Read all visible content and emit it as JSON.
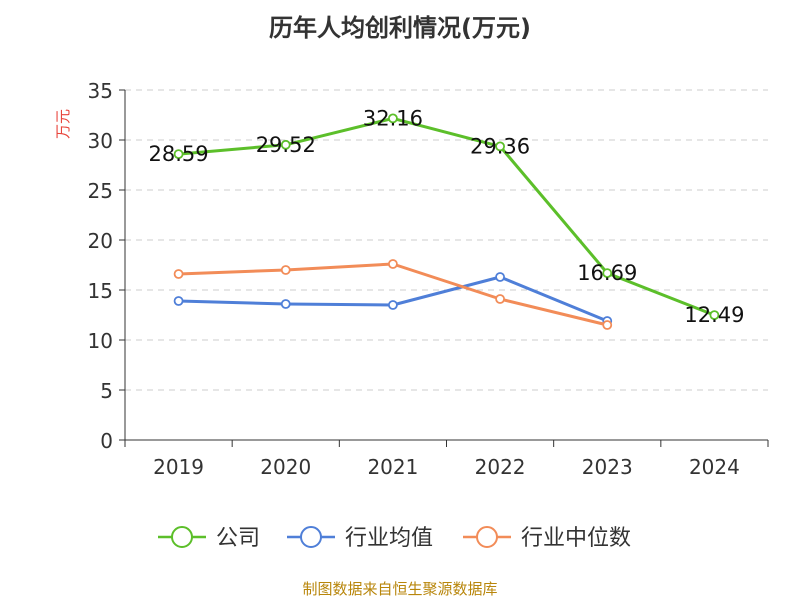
{
  "chart_data": {
    "type": "line",
    "title": "历年人均创利情况(万元)",
    "ylabel": "万元",
    "xlabel": "",
    "categories": [
      "2019",
      "2020",
      "2021",
      "2022",
      "2023",
      "2024"
    ],
    "ylim": [
      0,
      35
    ],
    "yticks": [
      "0",
      "5",
      "10",
      "15",
      "20",
      "25",
      "30",
      "35"
    ],
    "grid": true,
    "legend_position": "bottom",
    "series": [
      {
        "name": "公司",
        "color": "#5cbf2a",
        "show_labels": true,
        "values": [
          28.59,
          29.52,
          32.16,
          29.36,
          16.69,
          12.49
        ],
        "labels": [
          "28.59",
          "29.52",
          "32.16",
          "29.36",
          "16.69",
          "12.49"
        ]
      },
      {
        "name": "行业均值",
        "color": "#4f7fd8",
        "show_labels": false,
        "values": [
          13.9,
          13.6,
          13.5,
          16.3,
          11.9,
          null
        ]
      },
      {
        "name": "行业中位数",
        "color": "#f28c58",
        "show_labels": false,
        "values": [
          16.6,
          17.0,
          17.6,
          14.1,
          11.5,
          null
        ]
      }
    ]
  },
  "source": "制图数据来自恒生聚源数据库"
}
